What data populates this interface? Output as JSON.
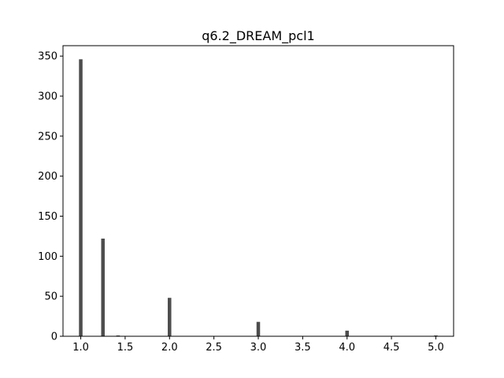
{
  "chart_data": {
    "type": "bar",
    "title": "q6.2_DREAM_pcl1",
    "xlabel": "",
    "ylabel": "",
    "xlim": [
      0.8,
      5.2
    ],
    "ylim": [
      0,
      363
    ],
    "bar_width": 0.04,
    "x_ticks": [
      1.0,
      1.5,
      2.0,
      2.5,
      3.0,
      3.5,
      4.0,
      4.5,
      5.0
    ],
    "x_tick_labels": [
      "1.0",
      "1.5",
      "2.0",
      "2.5",
      "3.0",
      "3.5",
      "4.0",
      "4.5",
      "5.0"
    ],
    "y_ticks": [
      0,
      50,
      100,
      150,
      200,
      250,
      300,
      350
    ],
    "y_tick_labels": [
      "0",
      "50",
      "100",
      "150",
      "200",
      "250",
      "300",
      "350"
    ],
    "x": [
      1.0,
      1.25,
      1.42,
      2.0,
      3.0,
      4.0,
      5.0
    ],
    "values": [
      346,
      122,
      1,
      48,
      18,
      7,
      1
    ],
    "bar_color": "#4d4d4d",
    "grid": false,
    "legend": "none"
  }
}
